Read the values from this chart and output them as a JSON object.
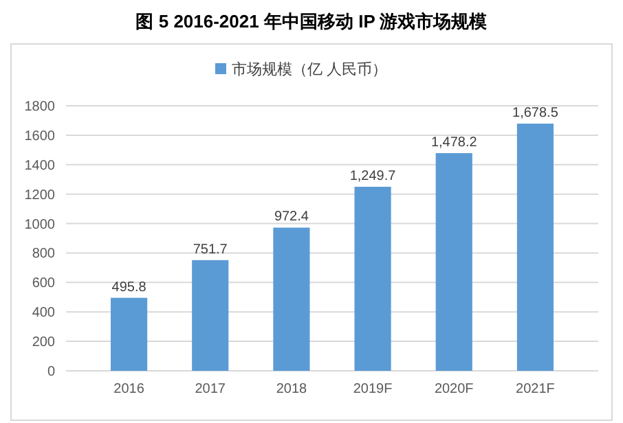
{
  "chart_data": {
    "type": "bar",
    "title": "图 5 2016-2021 年中国移动 IP 游戏市场规模",
    "categories": [
      "2016",
      "2017",
      "2018",
      "2019F",
      "2020F",
      "2021F"
    ],
    "series": [
      {
        "name": "市场规模（亿 人民币）",
        "color": "#5b9bd5",
        "values": [
          495.8,
          751.7,
          972.4,
          1249.7,
          1478.2,
          1678.5
        ]
      }
    ],
    "value_labels": [
      "495.8",
      "751.7",
      "972.4",
      "1,249.7",
      "1,478.2",
      "1,678.5"
    ],
    "ylim": [
      0,
      1800
    ],
    "yticks": [
      0,
      200,
      400,
      600,
      800,
      1000,
      1200,
      1400,
      1600,
      1800
    ],
    "grid": "y",
    "legend": "top"
  }
}
